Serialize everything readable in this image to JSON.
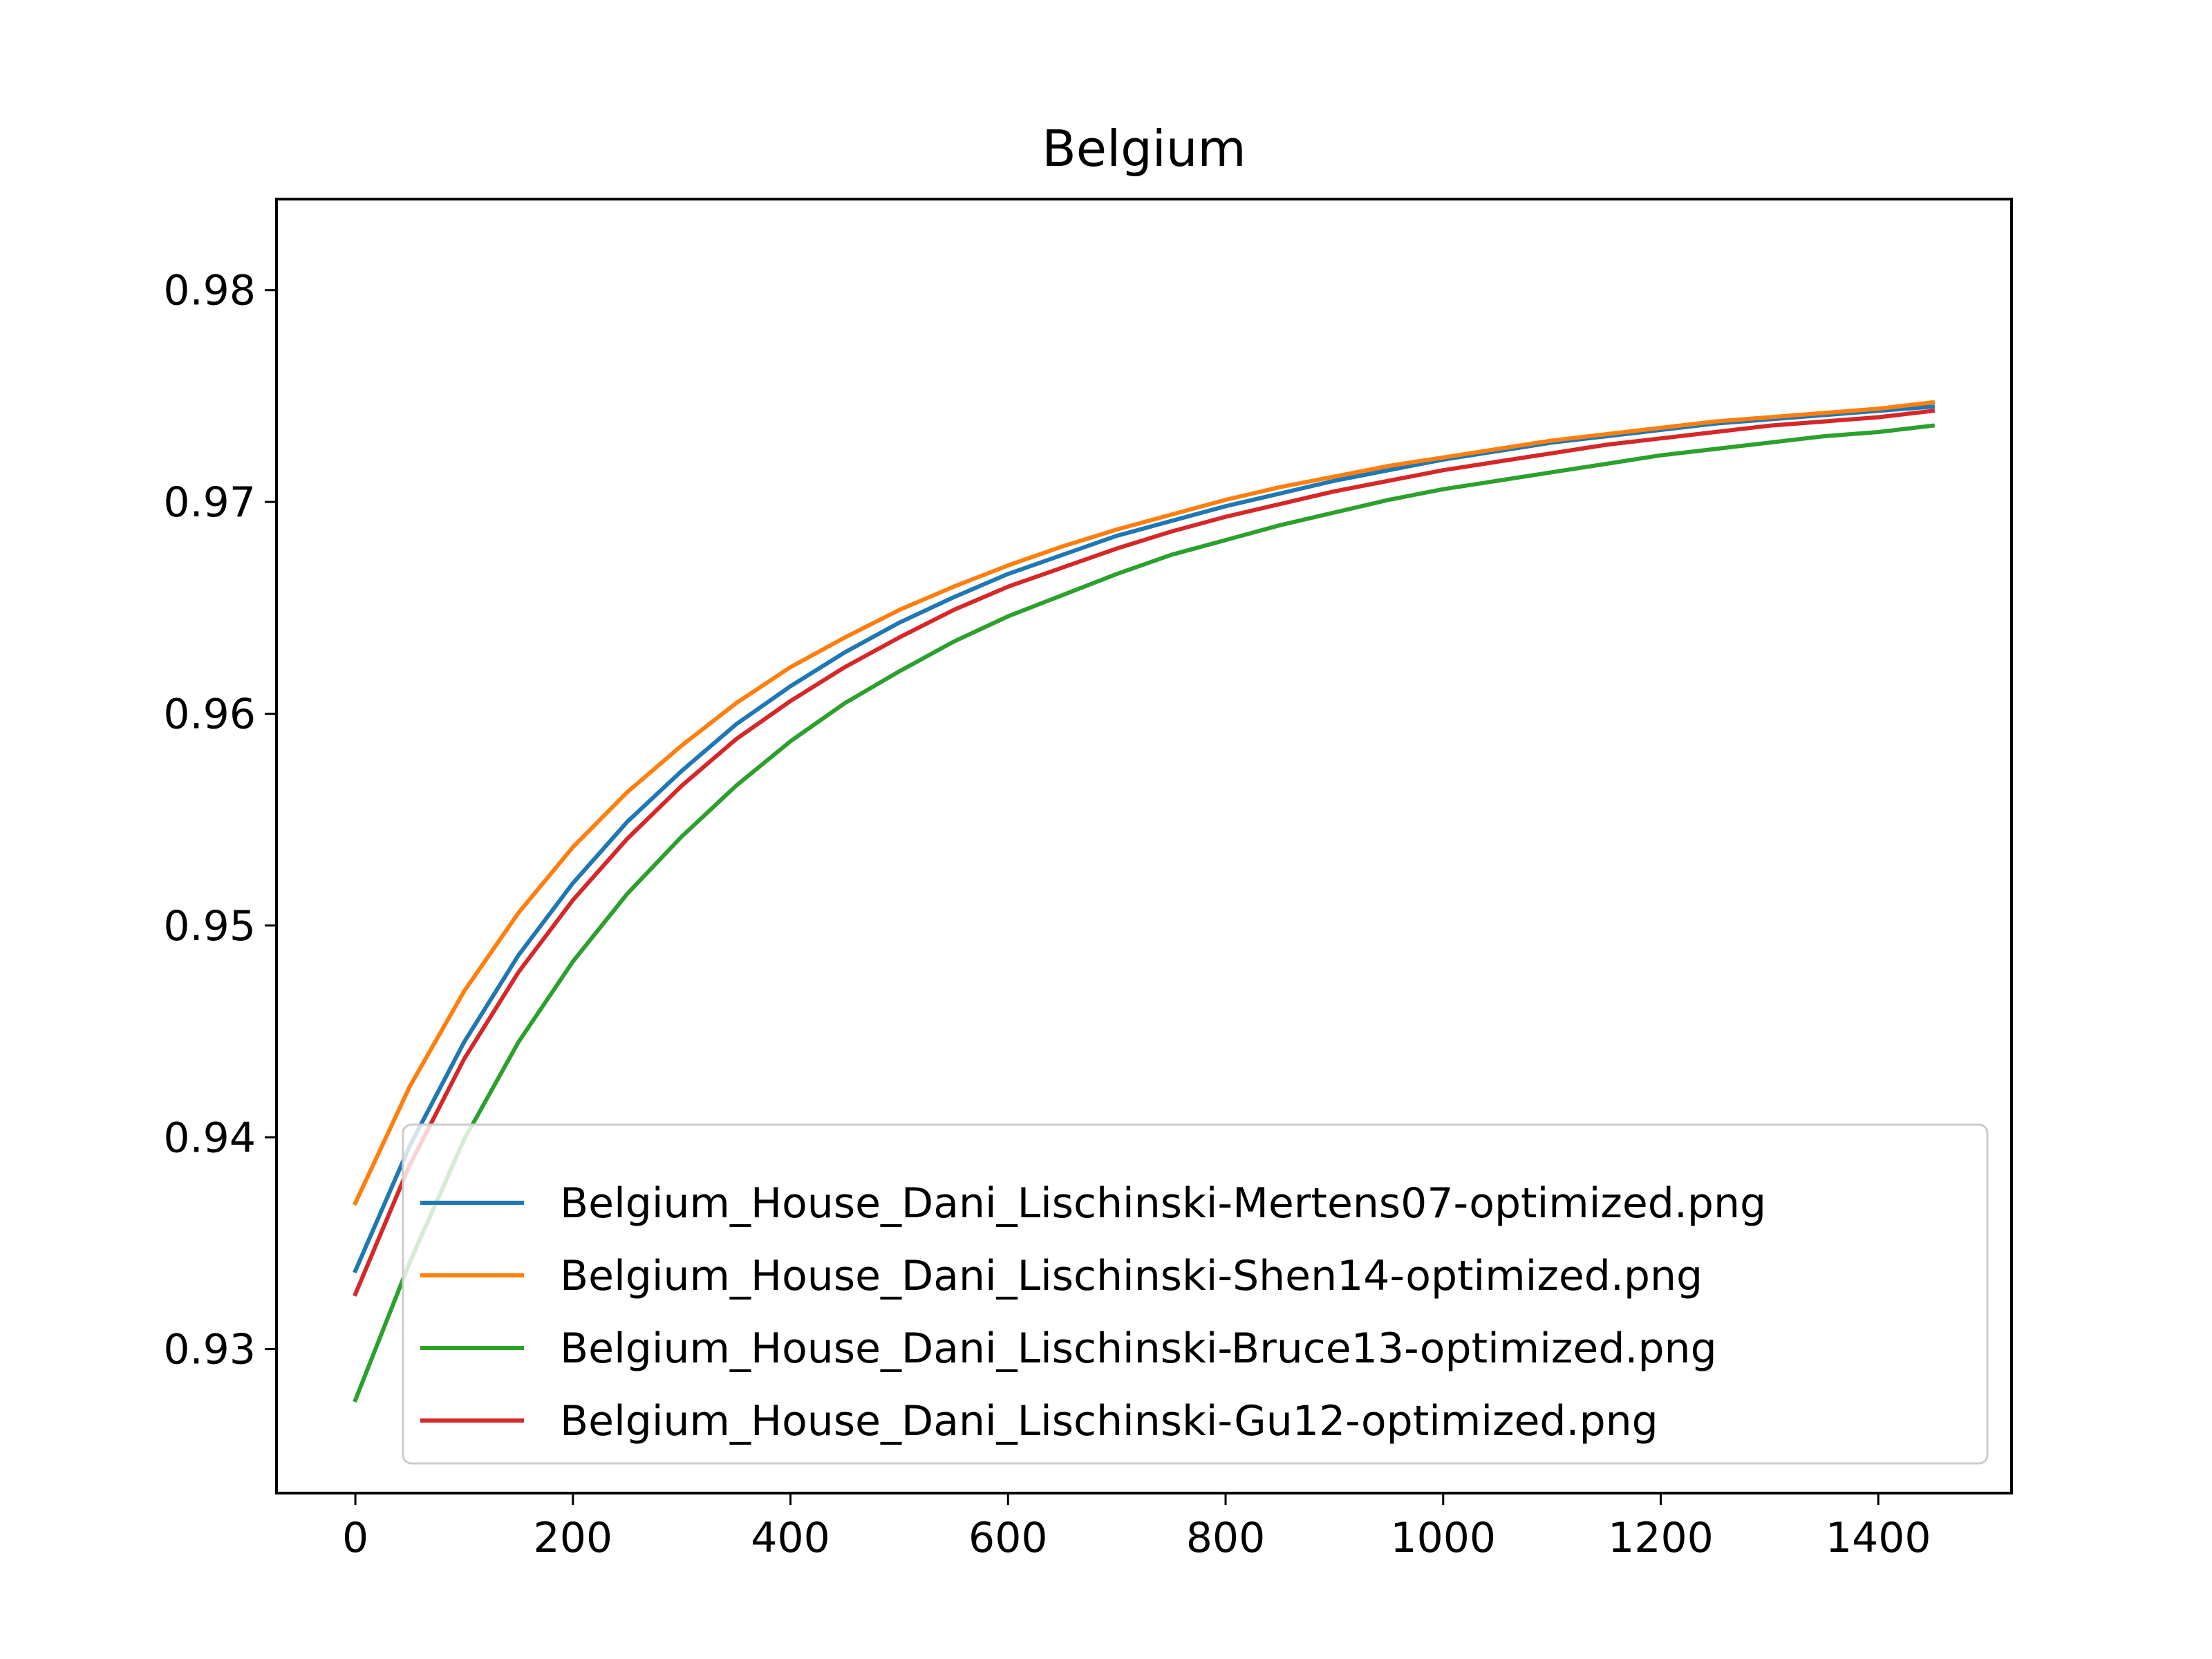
{
  "chart_data": {
    "type": "line",
    "title": "Belgium",
    "xlabel": "",
    "ylabel": "",
    "xlim": [
      -72.5,
      1522.5
    ],
    "ylim": [
      0.9232,
      0.9843
    ],
    "x_ticks": [
      0,
      200,
      400,
      600,
      800,
      1000,
      1200,
      1400
    ],
    "x_tick_labels": [
      "0",
      "200",
      "400",
      "600",
      "800",
      "1000",
      "1200",
      "1400"
    ],
    "y_ticks": [
      0.93,
      0.94,
      0.95,
      0.96,
      0.97,
      0.98
    ],
    "y_tick_labels": [
      "0.93",
      "0.94",
      "0.95",
      "0.96",
      "0.97",
      "0.98"
    ],
    "grid": false,
    "legend_position": "lower right",
    "x": [
      0,
      50,
      100,
      150,
      200,
      250,
      300,
      350,
      400,
      450,
      500,
      550,
      600,
      650,
      700,
      750,
      800,
      850,
      900,
      950,
      1000,
      1050,
      1100,
      1150,
      1200,
      1250,
      1300,
      1350,
      1400,
      1450
    ],
    "series": [
      {
        "name": "Belgium_House_Dani_Lischinski-Mertens07-optimized.png",
        "color": "#1f77b4",
        "values": [
          0.9337,
          0.9396,
          0.9445,
          0.9486,
          0.952,
          0.9549,
          0.9573,
          0.9595,
          0.9613,
          0.9629,
          0.9643,
          0.9655,
          0.9666,
          0.9675,
          0.9684,
          0.9691,
          0.9698,
          0.9704,
          0.971,
          0.9715,
          0.972,
          0.9724,
          0.9728,
          0.9731,
          0.9734,
          0.9737,
          0.9739,
          0.9741,
          0.9743,
          0.9745
        ]
      },
      {
        "name": "Belgium_House_Dani_Lischinski-Shen14-optimized.png",
        "color": "#ff7f0e",
        "values": [
          0.9369,
          0.9424,
          0.9469,
          0.9506,
          0.9537,
          0.9563,
          0.9585,
          0.9605,
          0.9622,
          0.9636,
          0.9649,
          0.966,
          0.967,
          0.9679,
          0.9687,
          0.9694,
          0.9701,
          0.9707,
          0.9712,
          0.9717,
          0.9721,
          0.9725,
          0.9729,
          0.9732,
          0.9735,
          0.9738,
          0.974,
          0.9742,
          0.9744,
          0.9747
        ]
      },
      {
        "name": "Belgium_House_Dani_Lischinski-Bruce13-optimized.png",
        "color": "#2ca02c",
        "values": [
          0.9276,
          0.9341,
          0.9399,
          0.9445,
          0.9483,
          0.9515,
          0.9542,
          0.9566,
          0.9587,
          0.9605,
          0.962,
          0.9634,
          0.9646,
          0.9656,
          0.9666,
          0.9675,
          0.9682,
          0.9689,
          0.9695,
          0.9701,
          0.9706,
          0.971,
          0.9714,
          0.9718,
          0.9722,
          0.9725,
          0.9728,
          0.9731,
          0.9733,
          0.9736
        ]
      },
      {
        "name": "Belgium_House_Dani_Lischinski-Gu12-optimized.png",
        "color": "#d62728",
        "values": [
          0.9326,
          0.9387,
          0.9437,
          0.9478,
          0.9512,
          0.9541,
          0.9566,
          0.9588,
          0.9606,
          0.9622,
          0.9636,
          0.9649,
          0.966,
          0.9669,
          0.9678,
          0.9686,
          0.9693,
          0.9699,
          0.9705,
          0.971,
          0.9715,
          0.9719,
          0.9723,
          0.9727,
          0.973,
          0.9733,
          0.9736,
          0.9738,
          0.974,
          0.9743
        ]
      }
    ]
  }
}
